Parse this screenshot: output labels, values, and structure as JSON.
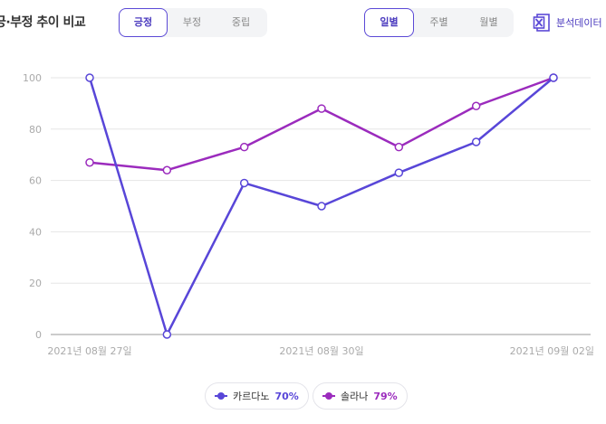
{
  "header": {
    "title": "긍·부정 추이 비교",
    "sentiment_tabs": [
      {
        "label": "긍정",
        "active": true
      },
      {
        "label": "부정",
        "active": false
      },
      {
        "label": "중립",
        "active": false
      }
    ],
    "period_tabs": [
      {
        "label": "일별",
        "active": true
      },
      {
        "label": "주별",
        "active": false
      },
      {
        "label": "월별",
        "active": false
      }
    ],
    "export_label": "분석데이터",
    "export_icon": "excel-icon"
  },
  "colors": {
    "accent": "#5b49d6",
    "series1": "#5846d8",
    "series2": "#9b2bbd",
    "grid": "#e6e6e6",
    "tick_text": "#aaaaaa"
  },
  "chart_data": {
    "type": "line",
    "x_ticks": [
      "2021년 08월 27일",
      "2021년 08월 30일",
      "2021년 09월 02일"
    ],
    "ylim": [
      0,
      100
    ],
    "y_ticks": [
      0,
      20,
      40,
      60,
      80,
      100
    ],
    "grid": true,
    "series": [
      {
        "name": "카르다노",
        "values": [
          100,
          0,
          59,
          50,
          63,
          75,
          100
        ]
      },
      {
        "name": "솔라나",
        "values": [
          67,
          64,
          73,
          88,
          73,
          89,
          100
        ]
      }
    ]
  },
  "legend": [
    {
      "name": "카르다노",
      "percent": "70%"
    },
    {
      "name": "솔라나",
      "percent": "79%"
    }
  ]
}
